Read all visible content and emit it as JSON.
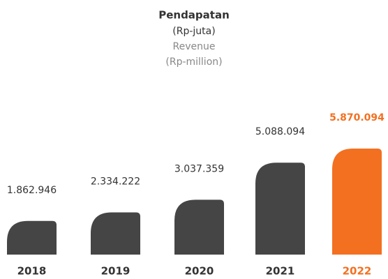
{
  "chart_data": {
    "type": "bar",
    "title": "Pendapatan",
    "subtitle": "(Rp-juta)",
    "title_en": "Revenue",
    "subtitle_en": "(Rp-million)",
    "categories": [
      "2018",
      "2019",
      "2020",
      "2021",
      "2022"
    ],
    "values": [
      1862946,
      2334222,
      3037359,
      5088094,
      5870094
    ],
    "value_labels": [
      "1.862.946",
      "2.334.222",
      "3.037.359",
      "5.088.094",
      "5.870.094"
    ],
    "colors": [
      "#454545",
      "#454545",
      "#454545",
      "#454545",
      "#f37021"
    ]
  }
}
